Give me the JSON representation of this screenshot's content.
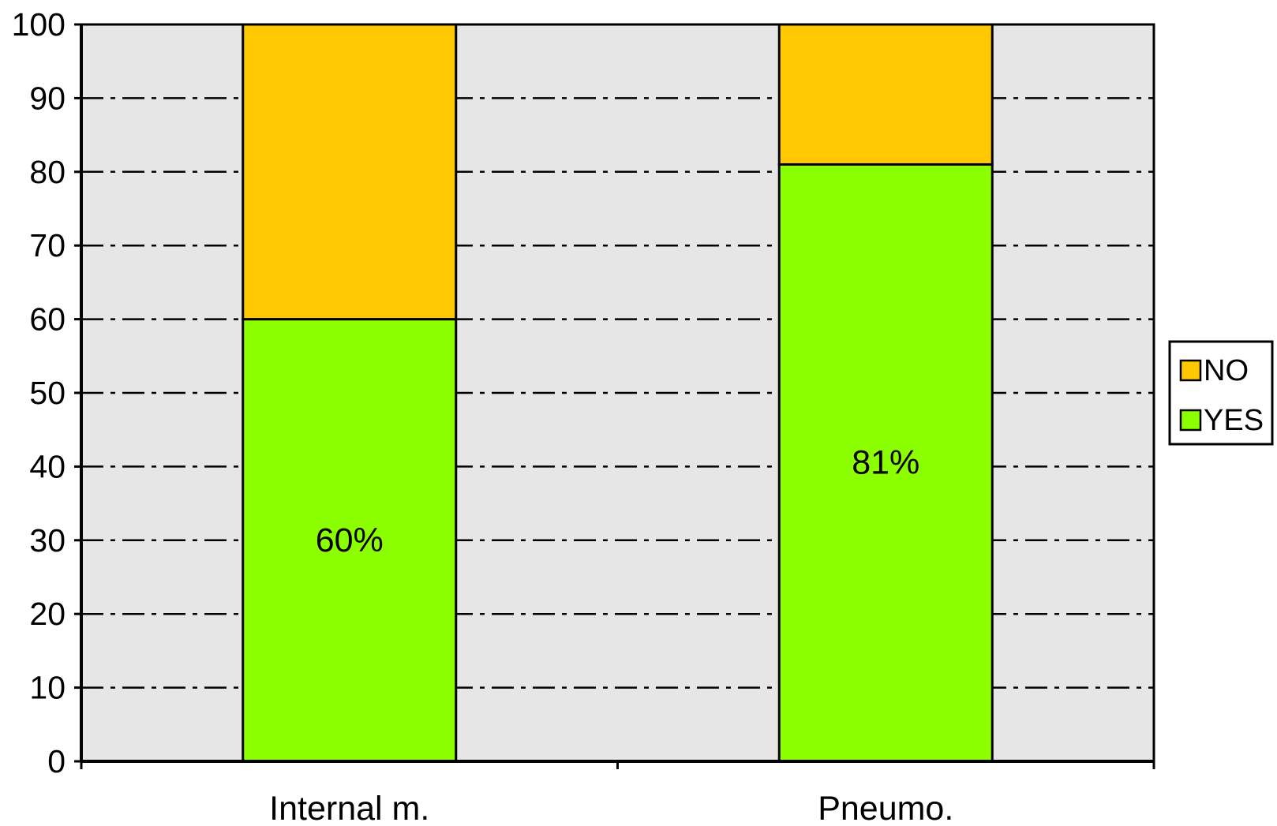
{
  "chart_data": {
    "type": "bar",
    "stacked": true,
    "title": "",
    "xlabel": "",
    "ylabel": "",
    "categories": [
      "Internal m.",
      "Pneumo."
    ],
    "series": [
      {
        "name": "YES",
        "values": [
          60,
          81
        ],
        "labels": [
          "60%",
          "81%"
        ],
        "color": "#8cff00"
      },
      {
        "name": "NO",
        "values": [
          40,
          19
        ],
        "color": "#ffc800"
      }
    ],
    "ylim": [
      0,
      100
    ],
    "yticks": [
      0,
      10,
      20,
      30,
      40,
      50,
      60,
      70,
      80,
      90,
      100
    ],
    "grid": true,
    "grid_style": "dash-dot",
    "plot_background": "#e6e6e6",
    "legend": {
      "position": "right",
      "order": [
        "NO",
        "YES"
      ]
    }
  }
}
